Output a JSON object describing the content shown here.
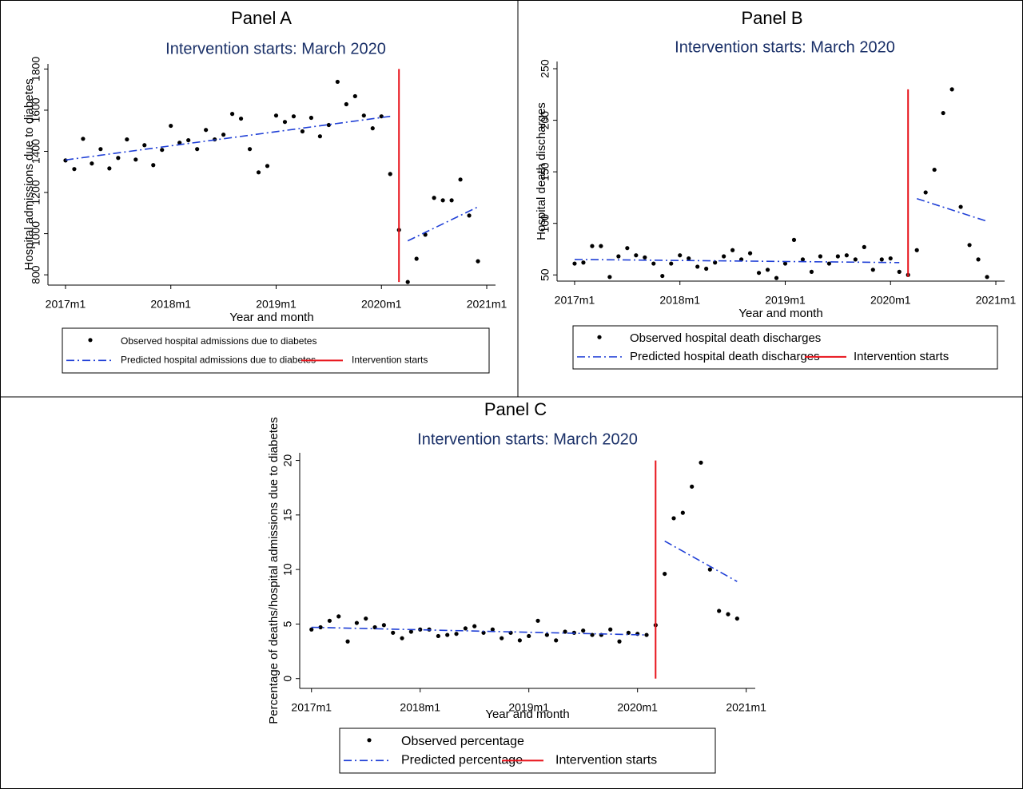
{
  "chart_data": [
    {
      "type": "scatter",
      "title": "Panel A",
      "subtitle": "Intervention starts: March 2020",
      "x_label": "Year and month",
      "y_label": "Hospital admissions due to diabetes",
      "xlim": [
        682,
        733
      ],
      "ylim": [
        750,
        1825
      ],
      "xticks": [
        {
          "value": 684,
          "label": "2017m1"
        },
        {
          "value": 696,
          "label": "2018m1"
        },
        {
          "value": 708,
          "label": "2019m1"
        },
        {
          "value": 720,
          "label": "2020m1"
        },
        {
          "value": 732,
          "label": "2021m1"
        }
      ],
      "yticks": [
        800,
        1000,
        1200,
        1400,
        1600,
        1800
      ],
      "series": [
        {
          "name": "Observed hospital admissions due to diabetes",
          "kind": "scatter",
          "color": "#000000",
          "x": [
            684,
            685,
            686,
            687,
            688,
            689,
            690,
            691,
            692,
            693,
            694,
            695,
            696,
            697,
            698,
            699,
            700,
            701,
            702,
            703,
            704,
            705,
            706,
            707,
            708,
            709,
            710,
            711,
            712,
            713,
            714,
            715,
            716,
            717,
            718,
            719,
            720,
            721,
            722,
            723,
            724,
            725,
            726,
            727,
            728,
            729,
            730,
            731
          ],
          "values": [
            1356,
            1314,
            1461,
            1341,
            1411,
            1317,
            1368,
            1458,
            1360,
            1430,
            1333,
            1407,
            1524,
            1442,
            1454,
            1411,
            1504,
            1458,
            1481,
            1582,
            1559,
            1411,
            1298,
            1329,
            1574,
            1543,
            1570,
            1497,
            1563,
            1473,
            1528,
            1738,
            1629,
            1668,
            1574,
            1512,
            1570,
            1290,
            1018,
            765,
            878,
            995,
            1174,
            1162,
            1162,
            1263,
            1088,
            866
          ]
        },
        {
          "name": "Predicted hospital admissions due to diabetes",
          "kind": "line",
          "style": "dash-dot",
          "color": "#1f3fd6",
          "x": [
            684,
            721,
            null,
            723,
            731
          ],
          "values": [
            1358,
            1570,
            null,
            965,
            1130
          ]
        },
        {
          "name": "Intervention starts",
          "kind": "line",
          "style": "solid",
          "color": "#e8141c",
          "x": [
            722,
            722
          ],
          "values": [
            765,
            1800
          ]
        }
      ]
    },
    {
      "type": "scatter",
      "title": "Panel B",
      "subtitle": "Intervention starts: March 2020",
      "x_label": "Year and month",
      "y_label": "Hospital death discharges",
      "xlim": [
        682,
        733
      ],
      "ylim": [
        44,
        257
      ],
      "xticks": [
        {
          "value": 684,
          "label": "2017m1"
        },
        {
          "value": 696,
          "label": "2018m1"
        },
        {
          "value": 708,
          "label": "2019m1"
        },
        {
          "value": 720,
          "label": "2020m1"
        },
        {
          "value": 732,
          "label": "2021m1"
        }
      ],
      "yticks": [
        50,
        100,
        150,
        200,
        250
      ],
      "series": [
        {
          "name": "Observed hospital death discharges",
          "kind": "scatter",
          "color": "#000000",
          "x": [
            684,
            685,
            686,
            687,
            688,
            689,
            690,
            691,
            692,
            693,
            694,
            695,
            696,
            697,
            698,
            699,
            700,
            701,
            702,
            703,
            704,
            705,
            706,
            707,
            708,
            709,
            710,
            711,
            712,
            713,
            714,
            715,
            716,
            717,
            718,
            719,
            720,
            721,
            722,
            723,
            724,
            725,
            726,
            727,
            728,
            729,
            730,
            731
          ],
          "values": [
            61,
            62,
            78,
            78,
            48,
            68,
            76,
            69,
            67,
            61,
            49,
            61,
            69,
            66,
            58,
            56,
            62,
            68,
            74,
            65,
            71,
            52,
            55,
            47,
            61,
            84,
            65,
            53,
            68,
            61,
            68,
            69,
            65,
            77,
            55,
            65,
            66,
            53,
            50,
            74,
            130,
            152,
            207,
            230,
            116,
            79,
            65,
            48
          ]
        },
        {
          "name": "Predicted hospital death discharges",
          "kind": "line",
          "style": "dash-dot",
          "color": "#1f3fd6",
          "x": [
            684,
            721,
            null,
            723,
            731
          ],
          "values": [
            65,
            62,
            null,
            124,
            102
          ]
        },
        {
          "name": "Intervention starts",
          "kind": "line",
          "style": "solid",
          "color": "#e8141c",
          "x": [
            722,
            722
          ],
          "values": [
            48,
            230
          ]
        }
      ]
    },
    {
      "type": "scatter",
      "title": "Panel C",
      "subtitle": "Intervention starts: March 2020",
      "x_label": "Year and month",
      "y_label": "Percentage of deaths/hospital admissions due to diabetes",
      "xlim": [
        682.7,
        733
      ],
      "ylim": [
        -0.9,
        20.7
      ],
      "xticks": [
        {
          "value": 684,
          "label": "2017m1"
        },
        {
          "value": 696,
          "label": "2018m1"
        },
        {
          "value": 708,
          "label": "2019m1"
        },
        {
          "value": 720,
          "label": "2020m1"
        },
        {
          "value": 732,
          "label": "2021m1"
        }
      ],
      "yticks": [
        0,
        5,
        10,
        15,
        20
      ],
      "series": [
        {
          "name": "Observed percentage",
          "kind": "scatter",
          "color": "#000000",
          "x": [
            684,
            685,
            686,
            687,
            688,
            689,
            690,
            691,
            692,
            693,
            694,
            695,
            696,
            697,
            698,
            699,
            700,
            701,
            702,
            703,
            704,
            705,
            706,
            707,
            708,
            709,
            710,
            711,
            712,
            713,
            714,
            715,
            716,
            717,
            718,
            719,
            720,
            721,
            722,
            723,
            724,
            725,
            726,
            727,
            728,
            729,
            730,
            731
          ],
          "values": [
            4.5,
            4.7,
            5.3,
            5.7,
            3.4,
            5.1,
            5.5,
            4.7,
            4.9,
            4.2,
            3.7,
            4.3,
            4.5,
            4.5,
            3.9,
            4.0,
            4.1,
            4.6,
            4.8,
            4.2,
            4.5,
            3.7,
            4.2,
            3.5,
            3.9,
            5.3,
            4.0,
            3.5,
            4.3,
            4.2,
            4.4,
            4.0,
            4.0,
            4.5,
            3.4,
            4.2,
            4.1,
            4.0,
            4.9,
            9.6,
            14.7,
            15.2,
            17.6,
            19.8,
            10.0,
            6.2,
            5.9,
            5.5
          ]
        },
        {
          "name": "Predicted percentage",
          "kind": "line",
          "style": "dash-dot",
          "color": "#1f3fd6",
          "x": [
            684,
            721,
            null,
            723,
            731
          ],
          "values": [
            4.7,
            4.0,
            null,
            12.6,
            8.9
          ]
        },
        {
          "name": "Intervention starts",
          "kind": "line",
          "style": "solid",
          "color": "#e8141c",
          "x": [
            722,
            722
          ],
          "values": [
            0,
            20
          ]
        }
      ]
    }
  ]
}
